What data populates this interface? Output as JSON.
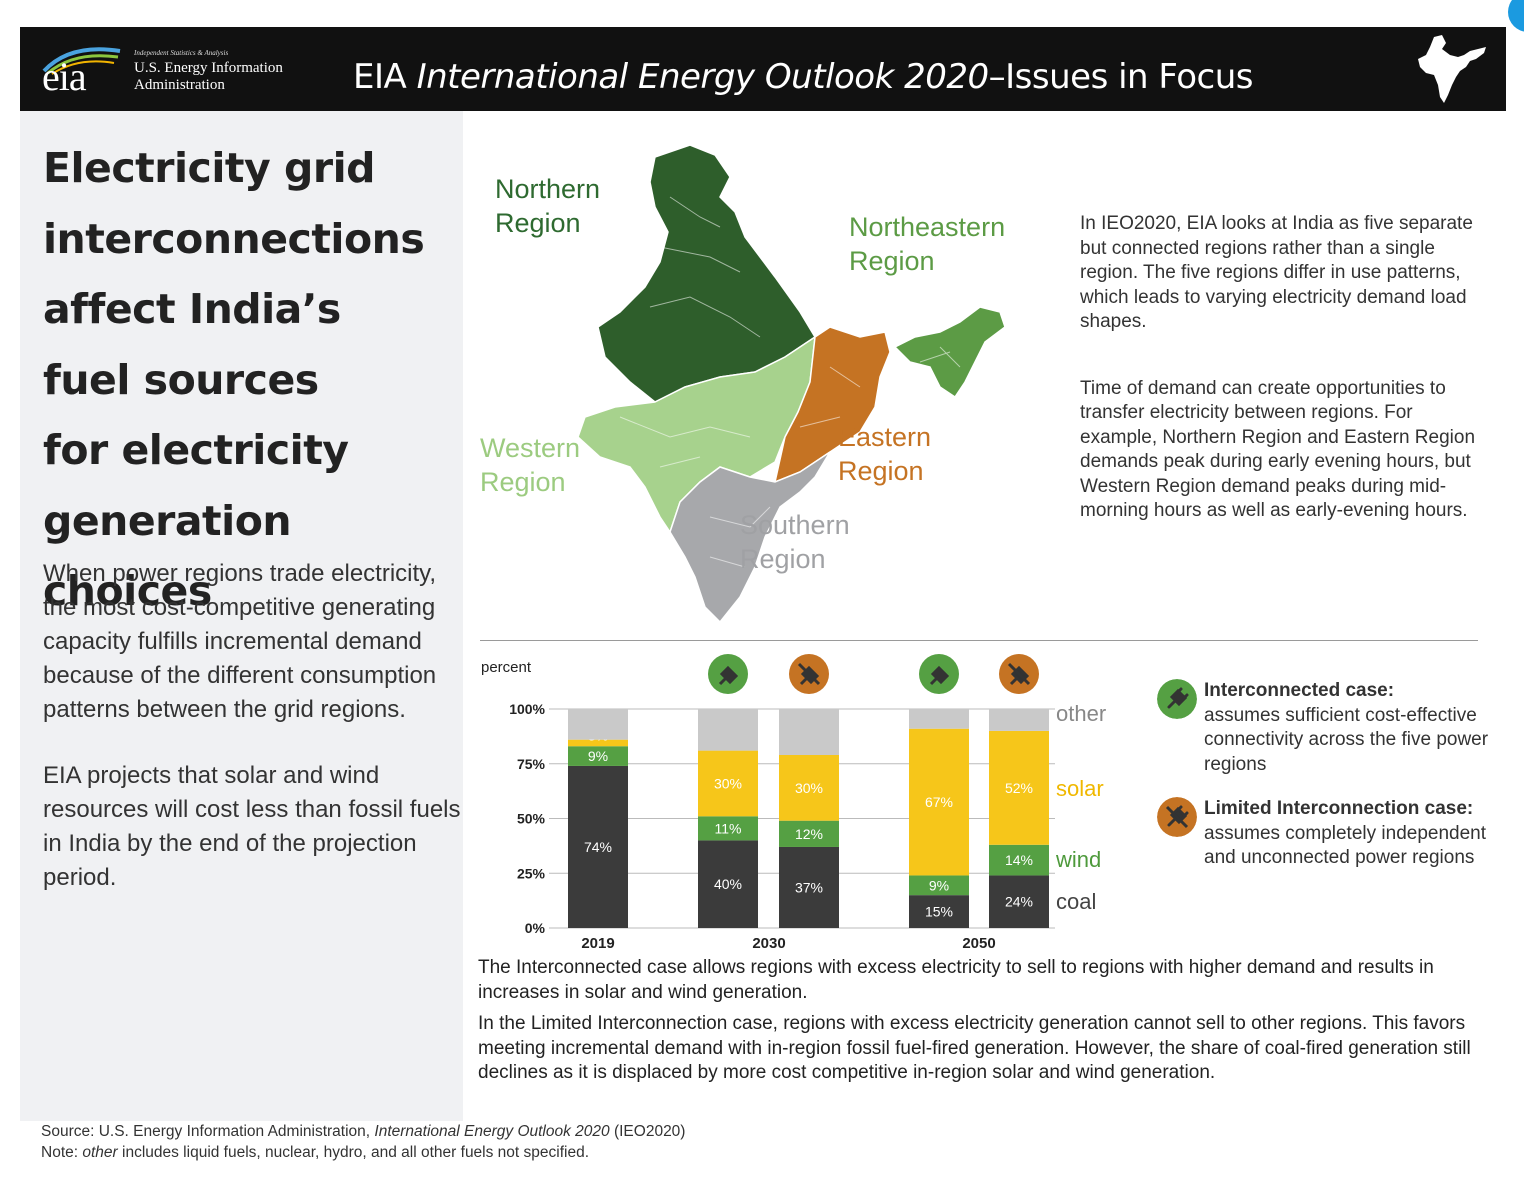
{
  "header": {
    "agency_tagline": "Independent Statistics & Analysis",
    "agency_name_line1": "U.S. Energy Information",
    "agency_name_line2": "Administration",
    "logo_text": "eia",
    "title_prefix": "EIA ",
    "title_italic": "International Energy Outlook 2020",
    "title_suffix": "–Issues in Focus"
  },
  "left_panel": {
    "title_lines": [
      "Electricity grid",
      "interconnections",
      "affect India’s",
      "fuel sources",
      "for electricity",
      "generation choices"
    ],
    "paragraph1": "When power regions trade electricity, the most cost-competitive generating capacity fulfills incremental demand because of the different consumption patterns between the grid regions.",
    "paragraph2": "EIA projects that solar and wind resources will cost less than fossil fuels in India by the end of the projection period."
  },
  "map": {
    "regions": [
      {
        "name": "Northern\nRegion",
        "color": "#2e5e2b"
      },
      {
        "name": "Northeastern\nRegion",
        "color": "#5c9b45"
      },
      {
        "name": "Western\nRegion",
        "color": "#a7d28d"
      },
      {
        "name": "Eastern\nRegion",
        "color": "#c57323"
      },
      {
        "name": "Southern\nRegion",
        "color": "#a7a8ab"
      }
    ]
  },
  "right_text": {
    "paragraph1": "In IEO2020, EIA looks at India as five separate but connected regions rather than a single region. The five regions differ in use patterns, which leads to varying electricity demand load shapes.",
    "paragraph2": "Time of demand can create opportunities to transfer electricity between regions. For example, Northern Region and Eastern Region demands peak during early evening hours, but Western Region demand peaks during mid-morning hours as well as early-evening hours."
  },
  "chart_data": {
    "type": "bar",
    "stacked": true,
    "ylabel": "percent",
    "ylim": [
      0,
      100
    ],
    "yticks": [
      "0%",
      "25%",
      "50%",
      "75%",
      "100%"
    ],
    "groups": [
      "2019",
      "2030",
      "2050"
    ],
    "bars": [
      {
        "year": "2019",
        "case": "historical",
        "coal": 74,
        "wind": 9,
        "solar": 3,
        "other": 14,
        "labels": {
          "coal": "74%",
          "wind": "9%",
          "solar": "3%"
        }
      },
      {
        "year": "2030",
        "case": "interconnected",
        "coal": 40,
        "wind": 11,
        "solar": 30,
        "other": 19,
        "labels": {
          "coal": "40%",
          "wind": "11%",
          "solar": "30%"
        }
      },
      {
        "year": "2030",
        "case": "limited",
        "coal": 37,
        "wind": 12,
        "solar": 30,
        "other": 21,
        "labels": {
          "coal": "37%",
          "wind": "12%",
          "solar": "30%"
        }
      },
      {
        "year": "2050",
        "case": "interconnected",
        "coal": 15,
        "wind": 9,
        "solar": 67,
        "other": 9,
        "labels": {
          "coal": "15%",
          "wind": "9%",
          "solar": "67%"
        }
      },
      {
        "year": "2050",
        "case": "limited",
        "coal": 24,
        "wind": 14,
        "solar": 52,
        "other": 10,
        "labels": {
          "coal": "24%",
          "wind": "14%",
          "solar": "52%"
        }
      }
    ],
    "series": [
      {
        "name": "coal",
        "color": "#3b3b3b"
      },
      {
        "name": "wind",
        "color": "#55a043"
      },
      {
        "name": "solar",
        "color": "#f6c61a"
      },
      {
        "name": "other",
        "color": "#c9c9c9"
      }
    ],
    "series_label_colors": {
      "other": "#888888",
      "solar": "#f0b800",
      "wind": "#4e9a3c",
      "coal": "#444444"
    }
  },
  "legend": {
    "interconnected_title": "Interconnected case:",
    "interconnected_text": "assumes sufficient cost-effective connectivity across the five power regions",
    "interconnected_color": "#55a043",
    "limited_title": "Limited Interconnection case:",
    "limited_text": "assumes completely independent and unconnected power regions",
    "limited_color": "#c57323"
  },
  "bottom_text": {
    "paragraph1": "The Interconnected case allows regions with excess electricity to sell to regions with higher demand and results in increases in solar and wind generation.",
    "paragraph2": "In the Limited Interconnection case, regions with excess electricity generation cannot sell to other regions. This favors meeting incremental demand with in-region fossil fuel-fired generation. However, the share of coal-fired generation still declines as it is displaced by more cost competitive in-region solar and wind generation."
  },
  "source": {
    "source_prefix": "Source: U.S. Energy Information Administration, ",
    "source_italic": "International Energy Outlook 2020",
    "source_suffix": " (IEO2020)",
    "note_prefix": "Note: ",
    "note_italic": "other",
    "note_suffix": " includes liquid fuels, nuclear, hydro, and all other fuels not specified."
  }
}
